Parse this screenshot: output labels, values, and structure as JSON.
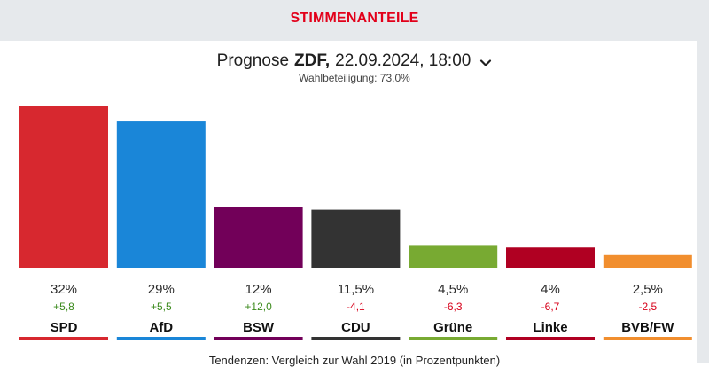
{
  "header": {
    "title": "STIMMENANTEILE"
  },
  "selector": {
    "label": "Prognose",
    "source": "ZDF,",
    "datetime": "22.09.2024, 18:00",
    "chevron_icon": "chevron-down-icon"
  },
  "turnout": "Wahlbeteiligung: 73,0%",
  "footnote": "Tendenzen: Vergleich zur Wahl 2019 (in Prozentpunkten)",
  "chart_data": {
    "type": "bar",
    "categories": [
      "SPD",
      "AfD",
      "BSW",
      "CDU",
      "Grüne",
      "Linke",
      "BVB/FW"
    ],
    "values": [
      32,
      29,
      12,
      11.5,
      4.5,
      4,
      2.5
    ],
    "value_labels": [
      "32%",
      "29%",
      "12%",
      "11,5%",
      "4,5%",
      "4%",
      "2,5%"
    ],
    "change_labels": [
      "+5,8",
      "+5,5",
      "+12,0",
      "-4,1",
      "-6,3",
      "-6,7",
      "-2,5"
    ],
    "changes": [
      5.8,
      5.5,
      12.0,
      -4.1,
      -6.3,
      -6.7,
      -2.5
    ],
    "colors": [
      "#d7282f",
      "#1a86d8",
      "#720059",
      "#333333",
      "#78aa32",
      "#b00022",
      "#f18e2e"
    ],
    "positive_color": "#3b8a1c",
    "negative_color": "#d7001a",
    "ylim": [
      0,
      32
    ]
  }
}
